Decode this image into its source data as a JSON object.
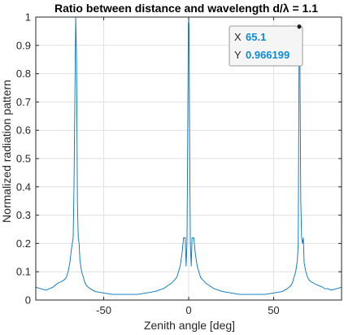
{
  "chart_data": {
    "type": "line",
    "title": "Ratio between distance and wavelength d/λ = 1.1",
    "xlabel": "Zenith angle [deg]",
    "ylabel": "Normalized radiation pattern",
    "xlim": [
      -90,
      90
    ],
    "ylim": [
      0,
      1
    ],
    "xticks": [
      -50,
      0,
      50
    ],
    "xtick_labels": [
      "-50",
      "0",
      "50"
    ],
    "yticks": [
      0,
      0.1,
      0.2,
      0.3,
      0.4,
      0.5,
      0.6,
      0.7,
      0.8,
      0.9,
      1
    ],
    "ytick_labels": [
      "0",
      "0.1",
      "0.2",
      "0.3",
      "0.4",
      "0.5",
      "0.6",
      "0.7",
      "0.8",
      "0.9",
      "1"
    ],
    "grid": true,
    "series": [
      {
        "color": "#0072bd",
        "x": [
          -90,
          -87,
          -84,
          -82,
          -80,
          -79,
          -77,
          -75,
          -73.5,
          -72,
          -71,
          -70,
          -69,
          -68,
          -67.5,
          -67,
          -66.5,
          -66,
          -65.5,
          -65,
          -64.5,
          -64,
          -63,
          -62,
          -61,
          -60,
          -58,
          -55,
          -50,
          -45,
          -40,
          -35,
          -30,
          -25,
          -20,
          -15,
          -10,
          -7,
          -5,
          -4,
          -3,
          -2,
          -1.5,
          -1,
          -0.7,
          -0.4,
          -0.2,
          0,
          0.2,
          0.4,
          0.7,
          1,
          1.5,
          2,
          3,
          4,
          5,
          7,
          10,
          15,
          20,
          25,
          30,
          35,
          40,
          45,
          50,
          55,
          58,
          60,
          61,
          62,
          63,
          64,
          64.5,
          65,
          65.1,
          65.5,
          66,
          66.5,
          67,
          67.5,
          68,
          69,
          70,
          71,
          72,
          73.5,
          75,
          77,
          79,
          80,
          82,
          84,
          87,
          90
        ],
        "y": [
          0.045,
          0.04,
          0.035,
          0.04,
          0.045,
          0.05,
          0.06,
          0.065,
          0.07,
          0.08,
          0.1,
          0.13,
          0.18,
          0.22,
          0.4,
          0.7,
          1,
          0.85,
          0.35,
          0.22,
          0.2,
          0.14,
          0.1,
          0.08,
          0.06,
          0.05,
          0.04,
          0.03,
          0.025,
          0.02,
          0.02,
          0.02,
          0.02,
          0.025,
          0.03,
          0.04,
          0.06,
          0.08,
          0.12,
          0.16,
          0.22,
          0.22,
          0.12,
          0.2,
          0.45,
          0.75,
          0.975,
          0.99,
          0.975,
          0.75,
          0.45,
          0.2,
          0.12,
          0.22,
          0.22,
          0.16,
          0.12,
          0.08,
          0.06,
          0.04,
          0.03,
          0.025,
          0.02,
          0.02,
          0.02,
          0.02,
          0.025,
          0.03,
          0.04,
          0.05,
          0.06,
          0.08,
          0.1,
          0.14,
          0.2,
          0.9,
          0.966199,
          0.85,
          0.35,
          0.22,
          0.2,
          0.22,
          0.13,
          0.1,
          0.08,
          0.07,
          0.065,
          0.06,
          0.055,
          0.05,
          0.045,
          0.04,
          0.04,
          0.035,
          0.04,
          0.045
        ]
      }
    ],
    "datatip": {
      "x_key": "X",
      "x_value": "65.1",
      "y_key": "Y",
      "y_value": "0.966199",
      "x": 65.1,
      "y": 0.966199
    }
  }
}
